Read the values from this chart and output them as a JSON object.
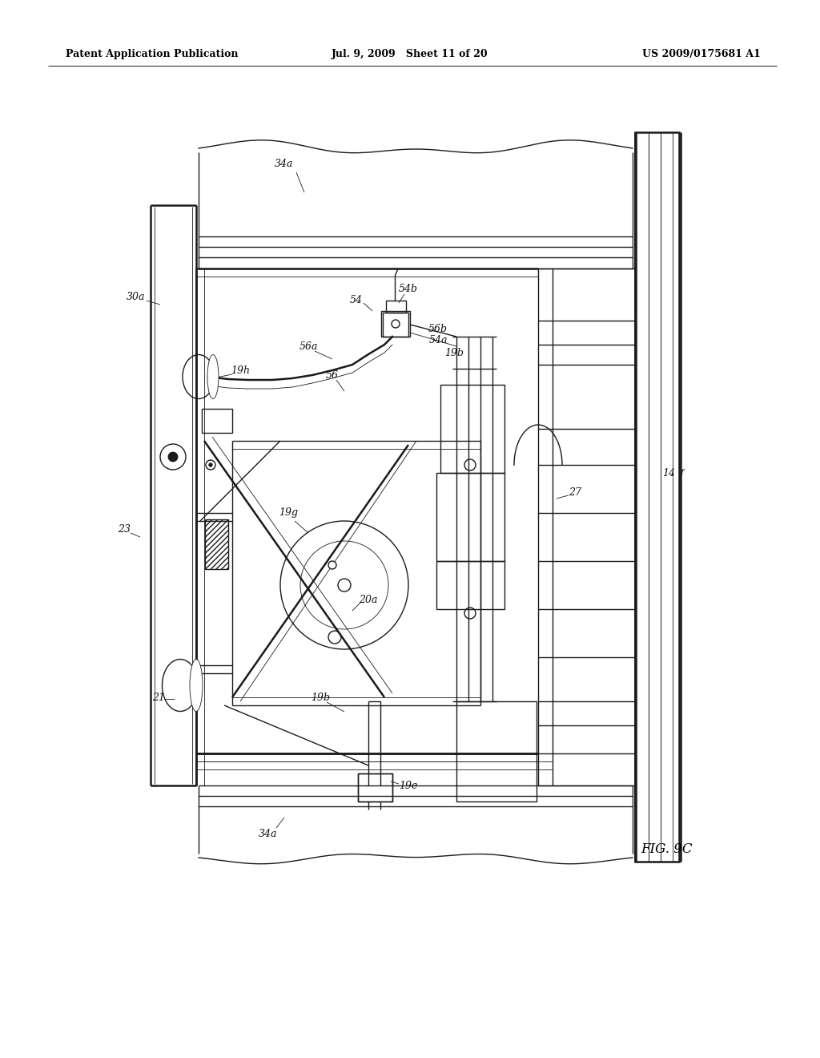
{
  "bg_color": "#ffffff",
  "header_text_left": "Patent Application Publication",
  "header_text_mid": "Jul. 9, 2009   Sheet 11 of 20",
  "header_text_right": "US 2009/0175681 A1",
  "figure_label": "FIG. 9C",
  "line_color": "#1a1a1a",
  "annotation_color": "#111111",
  "lw_main": 1.0,
  "lw_thick": 1.8,
  "lw_thin": 0.6
}
